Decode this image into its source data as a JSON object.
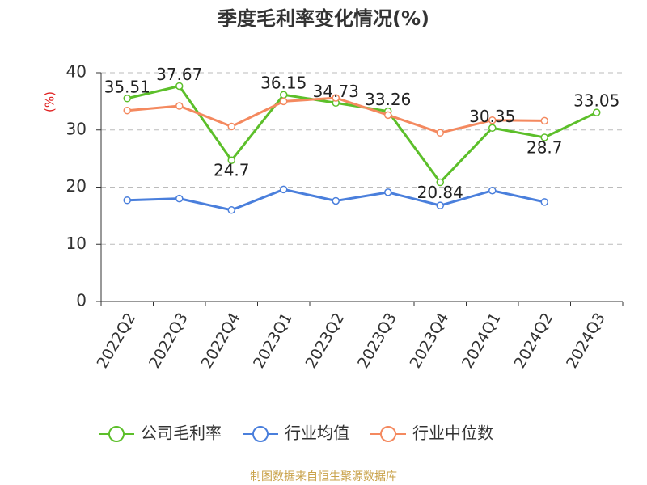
{
  "chart_data": {
    "type": "line",
    "title": "季度毛利率变化情况(%)",
    "y_label": "(%)",
    "categories": [
      "2022Q2",
      "2022Q3",
      "2022Q4",
      "2023Q1",
      "2023Q2",
      "2023Q3",
      "2023Q4",
      "2024Q1",
      "2024Q2",
      "2024Q3"
    ],
    "series": [
      {
        "name": "公司毛利率",
        "color": "#5cbf2a",
        "values": [
          35.51,
          37.67,
          24.7,
          36.15,
          34.73,
          33.26,
          20.84,
          30.35,
          28.7,
          33.05
        ],
        "data_labels": true
      },
      {
        "name": "行业均值",
        "color": "#4a7fdc",
        "values": [
          17.7,
          18.0,
          16.0,
          19.6,
          17.6,
          19.1,
          16.8,
          19.4,
          17.4,
          null
        ]
      },
      {
        "name": "行业中位数",
        "color": "#f4895f",
        "values": [
          33.4,
          34.2,
          30.6,
          35.0,
          35.6,
          32.6,
          29.5,
          31.7,
          31.6,
          null
        ]
      }
    ],
    "ylim": [
      0,
      40
    ],
    "yticks": [
      0,
      10,
      20,
      30,
      40
    ],
    "grid": true,
    "source": "制图数据来自恒生聚源数据库"
  }
}
